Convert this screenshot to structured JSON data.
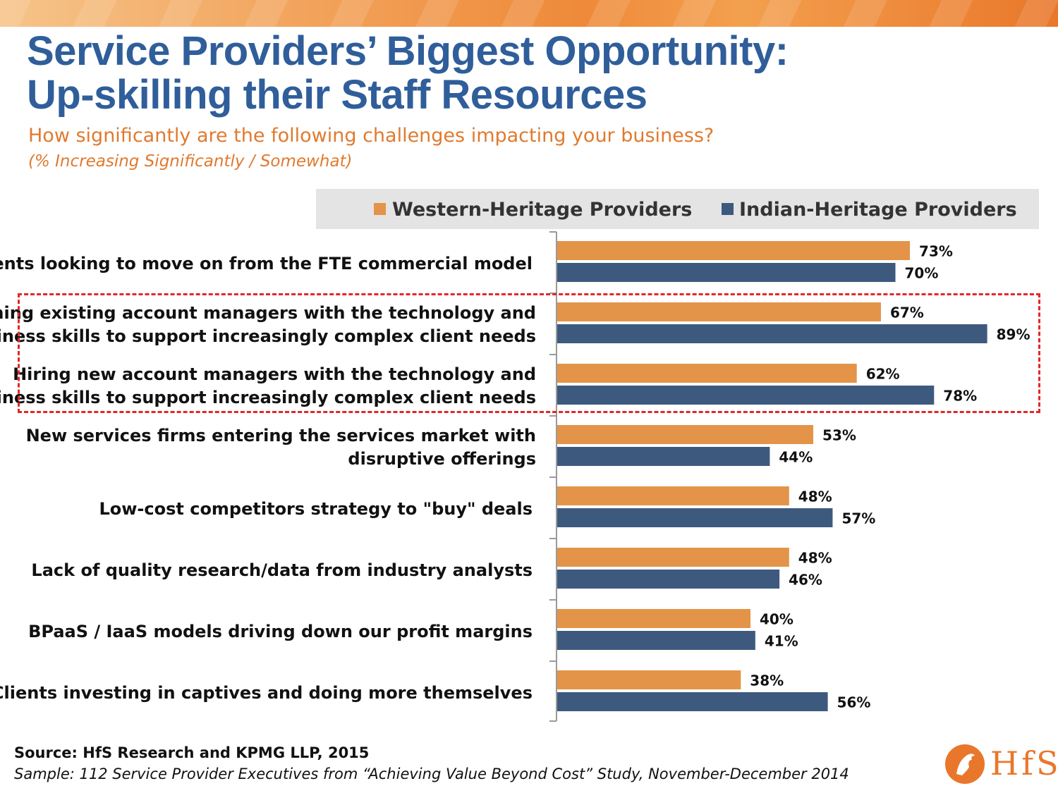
{
  "header": {
    "title_line1": "Service Providers’ Biggest Opportunity:",
    "title_line2": "Up-skilling their Staff Resources",
    "subtitle": "How significantly are the following challenges impacting your business?",
    "subnote": "(% Increasing Significantly / Somewhat)"
  },
  "colors": {
    "western": "#e39448",
    "indian": "#3d5a7e",
    "title": "#2f5e9a",
    "accent": "#e07a2f",
    "highlight": "#e0282a"
  },
  "chart_data": {
    "type": "bar",
    "orientation": "horizontal",
    "categories": [
      [
        "Clients looking to move on from the FTE commercial model"
      ],
      [
        "Training existing account managers with the technology and",
        "business skills to support increasingly complex client needs"
      ],
      [
        "Hiring new account managers with the technology and",
        "business skills to support increasingly complex client needs"
      ],
      [
        "New services firms entering the services market with",
        "disruptive offerings"
      ],
      [
        "Low-cost competitors strategy to \"buy\" deals"
      ],
      [
        "Lack of quality research/data from industry analysts"
      ],
      [
        "BPaaS / IaaS models driving down our profit margins"
      ],
      [
        "Clients investing in captives and doing more themselves"
      ]
    ],
    "series": [
      {
        "name": "Western-Heritage Providers",
        "values": [
          73,
          67,
          62,
          53,
          48,
          48,
          40,
          38
        ],
        "labels": [
          "73%",
          "67%",
          "62%",
          "53%",
          "48%",
          "48%",
          "40%",
          "38%"
        ]
      },
      {
        "name": "Indian-Heritage Providers",
        "values": [
          70,
          89,
          78,
          44,
          57,
          46,
          41,
          56
        ],
        "labels": [
          "70%",
          "89%",
          "78%",
          "44%",
          "57%",
          "46%",
          "41%",
          "56%"
        ]
      }
    ],
    "xlim": [
      0,
      100
    ],
    "legend": "top",
    "highlighted_categories": [
      1,
      2
    ]
  },
  "footer": {
    "source": "Source:  HfS Research and KPMG LLP, 2015",
    "sample": "Sample: 112 Service Provider Executives from “Achieving Value Beyond Cost” Study, November-December 2014",
    "logo_text": "HfS"
  }
}
